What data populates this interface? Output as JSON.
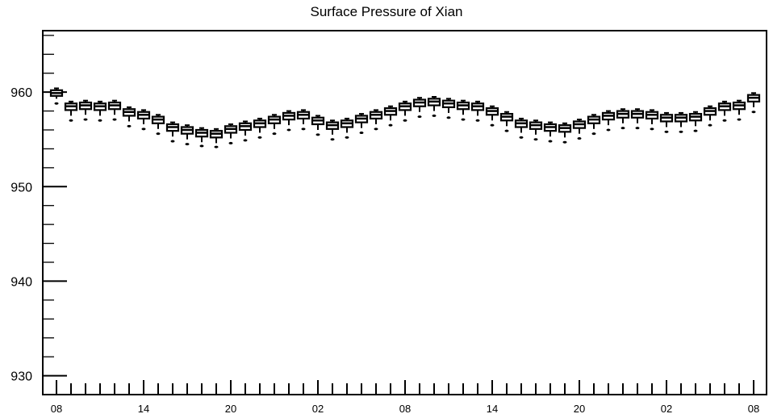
{
  "chart_data": {
    "type": "box",
    "title": "Surface Pressure of Xian",
    "xlabel": "",
    "ylabel": "",
    "ylim": [
      928,
      966.5
    ],
    "yticks": [
      930,
      940,
      950,
      960
    ],
    "xticks": [
      {
        "index": 0,
        "label": "08"
      },
      {
        "index": 6,
        "label": "14"
      },
      {
        "index": 12,
        "label": "20"
      },
      {
        "index": 18,
        "label": "02"
      },
      {
        "index": 24,
        "label": "08"
      },
      {
        "index": 30,
        "label": "14"
      },
      {
        "index": 36,
        "label": "20"
      },
      {
        "index": 42,
        "label": "02"
      },
      {
        "index": 48,
        "label": "08"
      }
    ],
    "grid": false,
    "legend": "none",
    "series": [
      {
        "median": [
          959.9,
          958.5,
          958.6,
          958.5,
          958.6,
          957.9,
          957.6,
          957.1,
          956.3,
          956.0,
          955.7,
          955.6,
          956.1,
          956.4,
          956.7,
          957.1,
          957.5,
          957.6,
          957.0,
          956.5,
          956.7,
          957.2,
          957.6,
          958.0,
          958.5,
          958.9,
          959.0,
          958.8,
          958.6,
          958.5,
          958.0,
          957.4,
          956.7,
          956.5,
          956.3,
          956.2,
          956.6,
          957.1,
          957.5,
          957.7,
          957.7,
          957.6,
          957.3,
          957.3,
          957.4,
          958.0,
          958.5,
          958.6,
          959.4
        ],
        "q1": [
          959.6,
          958.1,
          958.2,
          958.1,
          958.2,
          957.5,
          957.2,
          956.7,
          955.9,
          955.6,
          955.3,
          955.2,
          955.7,
          956.0,
          956.3,
          956.7,
          957.1,
          957.2,
          956.6,
          956.1,
          956.3,
          956.8,
          957.2,
          957.6,
          958.1,
          958.5,
          958.6,
          958.4,
          958.2,
          958.1,
          957.6,
          957.0,
          956.3,
          956.1,
          955.9,
          955.8,
          956.2,
          956.7,
          957.1,
          957.3,
          957.3,
          957.2,
          956.9,
          956.9,
          957.0,
          957.6,
          958.1,
          958.2,
          959.0
        ],
        "q3": [
          960.2,
          958.8,
          958.9,
          958.8,
          958.9,
          958.2,
          957.9,
          957.4,
          956.6,
          956.3,
          956.0,
          955.9,
          956.4,
          956.7,
          957.0,
          957.4,
          957.8,
          957.9,
          957.3,
          956.8,
          957.0,
          957.5,
          957.9,
          958.3,
          958.8,
          959.2,
          959.3,
          959.1,
          958.9,
          958.8,
          958.3,
          957.7,
          957.0,
          956.8,
          956.6,
          956.5,
          956.9,
          957.4,
          957.8,
          958.0,
          958.0,
          957.9,
          957.6,
          957.6,
          957.7,
          958.3,
          958.8,
          958.9,
          959.7
        ],
        "low": [
          959.3,
          957.5,
          957.6,
          957.5,
          957.6,
          956.9,
          956.6,
          956.1,
          955.3,
          955.0,
          954.7,
          954.6,
          955.1,
          955.4,
          955.7,
          956.1,
          956.5,
          956.6,
          956.0,
          955.5,
          955.7,
          956.2,
          956.6,
          957.0,
          957.5,
          957.9,
          958.0,
          957.8,
          957.6,
          957.5,
          957.0,
          956.4,
          955.7,
          955.5,
          955.3,
          955.2,
          955.6,
          956.1,
          956.5,
          956.7,
          956.7,
          956.6,
          956.3,
          956.3,
          956.4,
          957.0,
          957.5,
          957.6,
          958.4
        ],
        "high": [
          960.4,
          959.0,
          959.1,
          959.0,
          959.1,
          958.4,
          958.1,
          957.6,
          956.8,
          956.5,
          956.2,
          956.1,
          956.6,
          956.9,
          957.2,
          957.6,
          958.0,
          958.1,
          957.5,
          957.0,
          957.2,
          957.7,
          958.1,
          958.5,
          959.0,
          959.4,
          959.5,
          959.3,
          959.1,
          959.0,
          958.5,
          957.9,
          957.2,
          957.0,
          956.8,
          956.7,
          957.1,
          957.6,
          958.0,
          958.2,
          958.2,
          958.1,
          957.8,
          957.8,
          957.9,
          958.5,
          959.0,
          959.1,
          959.9
        ],
        "outlier": [
          958.8,
          957.0,
          957.1,
          957.0,
          957.1,
          956.4,
          956.1,
          955.6,
          954.8,
          954.5,
          954.3,
          954.2,
          954.6,
          954.9,
          955.2,
          955.6,
          956.0,
          956.1,
          955.5,
          955.0,
          955.2,
          955.7,
          956.1,
          956.5,
          957.0,
          957.4,
          957.5,
          957.3,
          957.1,
          957.0,
          956.5,
          955.9,
          955.2,
          955.0,
          954.8,
          954.7,
          955.1,
          955.6,
          956.0,
          956.2,
          956.2,
          956.1,
          955.8,
          955.8,
          955.9,
          956.5,
          957.0,
          957.1,
          957.9
        ]
      }
    ]
  }
}
